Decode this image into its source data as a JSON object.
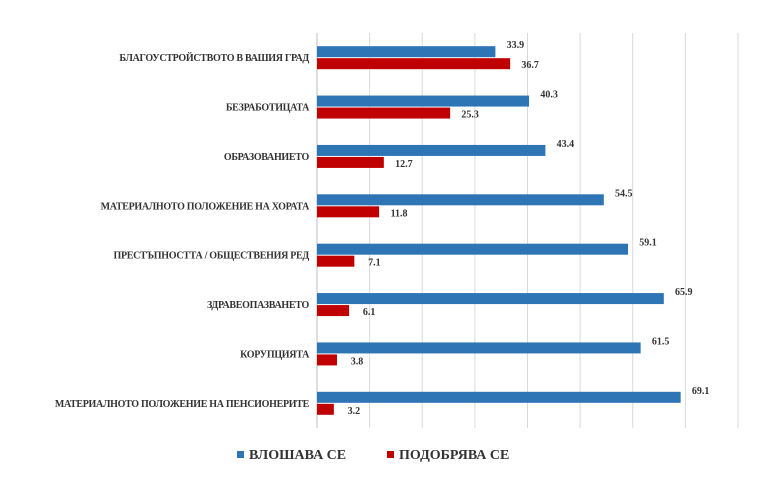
{
  "chart_data": {
    "type": "bar",
    "orientation": "horizontal",
    "categories": [
      "БЛАГОУСТРОЙСТВОТО В ВАШИЯ ГРАД",
      "БЕЗРАБОТИЦАТА",
      "ОБРАЗОВАНИЕТО",
      "МАТЕРИАЛНОТО ПОЛОЖЕНИЕ НА ХОРАТА",
      "ПРЕСТЪПНОСТТА / ОБЩЕСТВЕНИЯ РЕД",
      "ЗДРАВЕОПАЗВАНЕТО",
      "КОРУПЦИЯТА",
      "МАТЕРИАЛНОТО ПОЛОЖЕНИЕ НА ПЕНСИОНЕРИТЕ"
    ],
    "series": [
      {
        "name": "ВЛОШАВА СЕ",
        "color": "#2e75b6",
        "values": [
          33.9,
          40.3,
          43.4,
          54.5,
          59.1,
          65.9,
          61.5,
          69.1
        ]
      },
      {
        "name": "ПОДОБРЯВА СЕ",
        "color": "#c00000",
        "values": [
          36.7,
          25.3,
          12.7,
          11.8,
          7.1,
          6.1,
          3.8,
          3.2
        ]
      }
    ],
    "xlim": [
      0,
      80
    ],
    "grid": true,
    "data_labels": true,
    "legend_position": "bottom"
  }
}
